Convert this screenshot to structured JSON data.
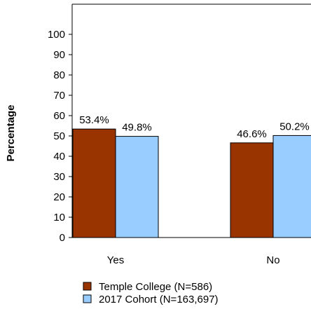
{
  "chart_data": {
    "type": "bar",
    "ylabel": "Percentage",
    "xlabel": "",
    "ylim": [
      0,
      110
    ],
    "yticks": [
      0,
      10,
      20,
      30,
      40,
      50,
      60,
      70,
      80,
      90,
      100
    ],
    "categories": [
      "Yes",
      "No"
    ],
    "series": [
      {
        "name": "Temple College (N=586)",
        "color": "#993300",
        "values": [
          53.4,
          46.6
        ],
        "labels": [
          "53.4%",
          "46.6%"
        ]
      },
      {
        "name": "2017 Cohort (N=163,697)",
        "color": "#99ccff",
        "values": [
          49.8,
          50.2
        ],
        "labels": [
          "49.8%",
          "50.2%"
        ]
      }
    ],
    "legend_position": "bottom",
    "grid": false
  }
}
